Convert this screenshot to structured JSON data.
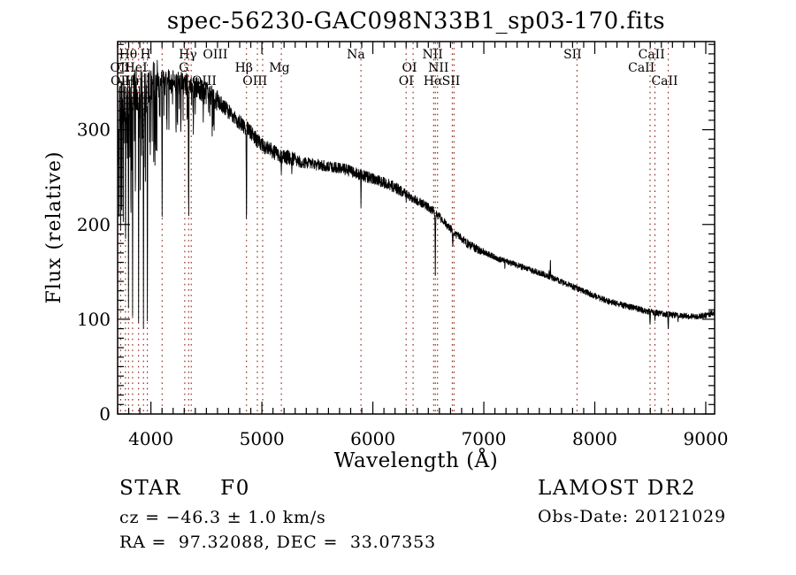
{
  "colors": {
    "background": "#ffffff",
    "spectrum": "#000000",
    "line_marker": "#8b1d10",
    "text": "#000000",
    "axis": "#000000"
  },
  "annotations": {
    "classification": "STAR",
    "subclass": "F0",
    "cz": "cz = −46.3 ± 1.0 km/s",
    "ra_dec": "RA =  97.32088, DEC =  33.07353",
    "survey": "LAMOST DR2",
    "obs_date": "Obs-Date: 20121029"
  },
  "chart_data": {
    "type": "line",
    "title": "spec-56230-GAC098N33B1_sp03-170.fits",
    "xlabel": "Wavelength (Å)",
    "ylabel": "Flux (relative)",
    "xlim": [
      3700,
      9080
    ],
    "ylim": [
      0,
      393
    ],
    "x_ticks": [
      4000,
      5000,
      6000,
      7000,
      8000,
      9000
    ],
    "y_ticks": [
      0,
      100,
      200,
      300
    ],
    "x_minor_step": 100,
    "y_minor_step": 10,
    "grid": false,
    "sample_step": 1.75,
    "seed": 20121029,
    "noise_bands": [
      [
        4060,
        25
      ],
      [
        4600,
        12
      ],
      [
        5300,
        8
      ],
      [
        6300,
        6
      ],
      [
        7000,
        4.5
      ],
      [
        9100,
        3.2
      ]
    ],
    "continuum_points": [
      [
        3700,
        315
      ],
      [
        3740,
        330
      ],
      [
        3780,
        338
      ],
      [
        3830,
        342
      ],
      [
        3880,
        340
      ],
      [
        3930,
        338
      ],
      [
        3980,
        342
      ],
      [
        4050,
        350
      ],
      [
        4150,
        352
      ],
      [
        4250,
        350
      ],
      [
        4350,
        347
      ],
      [
        4450,
        342
      ],
      [
        4550,
        336
      ],
      [
        4650,
        325
      ],
      [
        4750,
        313
      ],
      [
        4850,
        303
      ],
      [
        4950,
        290
      ],
      [
        5050,
        280
      ],
      [
        5150,
        274
      ],
      [
        5250,
        270
      ],
      [
        5350,
        266
      ],
      [
        5450,
        264
      ],
      [
        5550,
        262
      ],
      [
        5650,
        260
      ],
      [
        5750,
        258
      ],
      [
        5850,
        254
      ],
      [
        5950,
        250
      ],
      [
        6050,
        246
      ],
      [
        6150,
        242
      ],
      [
        6250,
        236
      ],
      [
        6350,
        228
      ],
      [
        6450,
        222
      ],
      [
        6550,
        214
      ],
      [
        6650,
        202
      ],
      [
        6750,
        190
      ],
      [
        6850,
        180
      ],
      [
        6950,
        173
      ],
      [
        7050,
        168
      ],
      [
        7150,
        163
      ],
      [
        7250,
        159
      ],
      [
        7350,
        155
      ],
      [
        7450,
        151
      ],
      [
        7550,
        147
      ],
      [
        7650,
        142
      ],
      [
        7750,
        137
      ],
      [
        7850,
        132
      ],
      [
        7950,
        127
      ],
      [
        8050,
        122
      ],
      [
        8150,
        118
      ],
      [
        8250,
        115
      ],
      [
        8350,
        112
      ],
      [
        8450,
        109
      ],
      [
        8550,
        107
      ],
      [
        8650,
        105
      ],
      [
        8750,
        104
      ],
      [
        8850,
        103
      ],
      [
        8950,
        103
      ],
      [
        9080,
        107
      ]
    ],
    "absorption_features": [
      [
        3712,
        200,
        7
      ],
      [
        3727,
        150,
        6
      ],
      [
        3737,
        205,
        6
      ],
      [
        3750,
        160,
        6
      ],
      [
        3771,
        135,
        6
      ],
      [
        3798,
        112,
        7
      ],
      [
        3820,
        170,
        6
      ],
      [
        3835,
        85,
        7
      ],
      [
        3860,
        190,
        5
      ],
      [
        3889,
        97,
        7
      ],
      [
        3905,
        225,
        5
      ],
      [
        3933,
        74,
        8
      ],
      [
        3950,
        235,
        5
      ],
      [
        3968,
        82,
        8
      ],
      [
        3995,
        275,
        5
      ],
      [
        4026,
        250,
        6
      ],
      [
        4077,
        300,
        5
      ],
      [
        4101,
        200,
        9
      ],
      [
        4144,
        290,
        6
      ],
      [
        4226,
        280,
        6
      ],
      [
        4271,
        300,
        6
      ],
      [
        4340,
        192,
        9
      ],
      [
        4383,
        285,
        6
      ],
      [
        4472,
        305,
        6
      ],
      [
        4520,
        310,
        5
      ],
      [
        4861,
        188,
        9
      ],
      [
        5175,
        252,
        8
      ],
      [
        5270,
        252,
        6
      ],
      [
        5893,
        216,
        7
      ],
      [
        6300,
        222,
        5
      ],
      [
        6363,
        224,
        5
      ],
      [
        6563,
        146,
        9
      ],
      [
        6720,
        176,
        10
      ],
      [
        7190,
        152,
        6
      ],
      [
        8498,
        93,
        9
      ],
      [
        8542,
        98,
        8
      ],
      [
        8662,
        87,
        9
      ],
      [
        8750,
        96,
        6
      ]
    ],
    "emission_features": [
      [
        7600,
        167,
        7
      ],
      [
        7588,
        153,
        5
      ]
    ],
    "line_markers": [
      3727,
      3770,
      3798,
      3835,
      3889,
      3933,
      3968,
      4101,
      4305,
      4340,
      4363,
      4861,
      4959,
      5007,
      5175,
      5893,
      6300,
      6363,
      6548,
      6563,
      6583,
      6716,
      6731,
      7840,
      8498,
      8542,
      8662
    ],
    "line_labels": [
      {
        "text": "Hθ",
        "row": 1,
        "at": 3795
      },
      {
        "text": "H",
        "row": 1,
        "at": 3952
      },
      {
        "text": "Hγ",
        "row": 1,
        "at": 4333
      },
      {
        "text": "OIII",
        "row": 1,
        "at": 4580
      },
      {
        "text": "Na",
        "row": 1,
        "at": 5847
      },
      {
        "text": "NII",
        "row": 1,
        "at": 6538
      },
      {
        "text": "SII",
        "row": 1,
        "at": 7800
      },
      {
        "text": "CaII",
        "row": 1,
        "at": 8512
      },
      {
        "text": "OII",
        "row": 2,
        "at": 3722
      },
      {
        "text": "HeI",
        "row": 2,
        "at": 3864
      },
      {
        "text": "G",
        "row": 2,
        "at": 4297
      },
      {
        "text": "Hβ",
        "row": 2,
        "at": 4838
      },
      {
        "text": "Mg",
        "row": 2,
        "at": 5158
      },
      {
        "text": "OI",
        "row": 2,
        "at": 6330
      },
      {
        "text": "NII",
        "row": 2,
        "at": 6592
      },
      {
        "text": "CaII",
        "row": 2,
        "at": 8420
      },
      {
        "text": "OII",
        "row": 3,
        "at": 3726
      },
      {
        "text": "Hη",
        "row": 3,
        "at": 3845
      },
      {
        "text": "OIII",
        "row": 3,
        "at": 4480
      },
      {
        "text": "OIII",
        "row": 3,
        "at": 4938
      },
      {
        "text": "OI",
        "row": 3,
        "at": 6300
      },
      {
        "text": "Hα",
        "row": 3,
        "at": 6542
      },
      {
        "text": "SII",
        "row": 3,
        "at": 6705
      },
      {
        "text": "CaII",
        "row": 3,
        "at": 8630
      }
    ]
  }
}
